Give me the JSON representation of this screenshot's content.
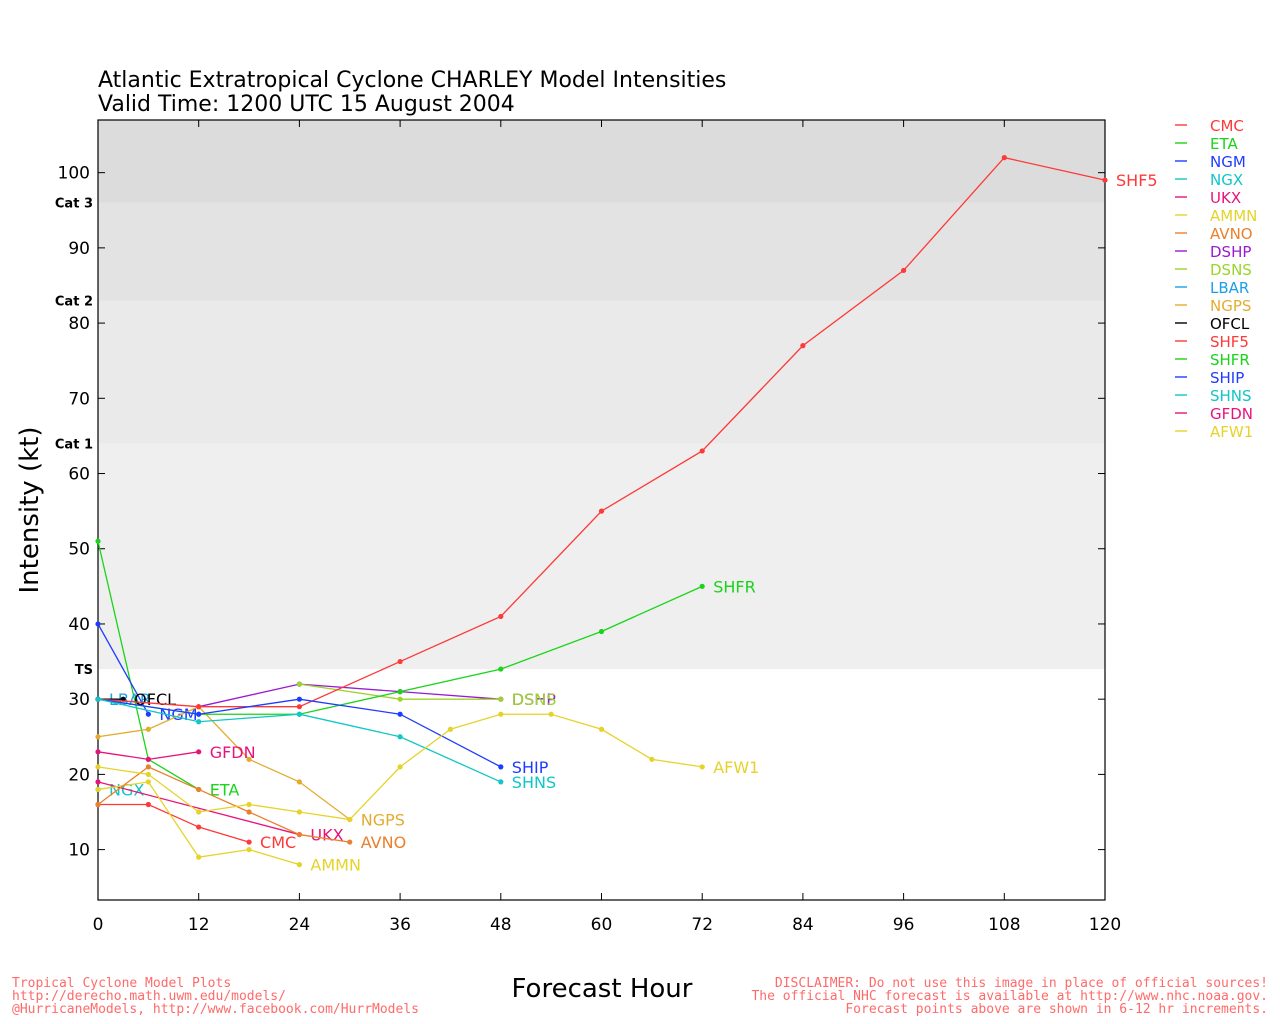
{
  "page": {
    "footer_left": [
      "Tropical Cyclone Model Plots",
      "http://derecho.math.uwm.edu/models/",
      "@HurricaneModels, http://www.facebook.com/HurrModels"
    ],
    "footer_right": [
      "DISCLAIMER: Do not use this image in place of official sources!",
      "The official NHC forecast is available at http://www.nhc.noaa.gov.",
      "Forecast points above are shown in 6-12 hr increments."
    ]
  },
  "chart_data": {
    "type": "line",
    "title": "Atlantic Extratropical Cyclone CHARLEY Model Intensities",
    "subtitle": "Valid Time: 1200 UTC 15 August 2004",
    "xlabel": "Forecast Hour",
    "ylabel": "Intensity (kt)",
    "xlim": [
      0,
      120
    ],
    "ylim": [
      3.3,
      107
    ],
    "x_ticks": [
      0,
      12,
      24,
      36,
      48,
      60,
      72,
      84,
      96,
      108,
      120
    ],
    "y_ticks": [
      10,
      20,
      30,
      40,
      50,
      60,
      70,
      80,
      90,
      100
    ],
    "grid": false,
    "legend_position": "right",
    "bands": [
      {
        "from": 3.3,
        "to": 34,
        "color": "#ffffff"
      },
      {
        "from": 34,
        "to": 64,
        "color": "#efefef"
      },
      {
        "from": 64,
        "to": 83,
        "color": "#eaeaea"
      },
      {
        "from": 83,
        "to": 96,
        "color": "#e3e3e3"
      },
      {
        "from": 96,
        "to": 107,
        "color": "#dcdcdc"
      }
    ],
    "category_labels": [
      {
        "label": "TS",
        "value": 34
      },
      {
        "label": "Cat 1",
        "value": 64
      },
      {
        "label": "Cat 2",
        "value": 83
      },
      {
        "label": "Cat 3",
        "value": 96
      }
    ],
    "series": [
      {
        "name": "CMC",
        "color": "#ff3838",
        "x": [
          0,
          6,
          12,
          18
        ],
        "y": [
          16,
          16,
          13,
          11
        ],
        "label": "CMC"
      },
      {
        "name": "ETA",
        "color": "#19d419",
        "x": [
          0,
          6,
          12
        ],
        "y": [
          51,
          22,
          18
        ],
        "label": "ETA"
      },
      {
        "name": "NGM",
        "color": "#1e3cff",
        "x": [
          0,
          6
        ],
        "y": [
          40,
          28
        ],
        "label": "NGM"
      },
      {
        "name": "NGX",
        "color": "#11c6c6",
        "x": [
          0
        ],
        "y": [
          18
        ],
        "label": "NGX"
      },
      {
        "name": "UKX",
        "color": "#e8137a",
        "x": [
          0,
          24
        ],
        "y": [
          19,
          12
        ],
        "label": "UKX"
      },
      {
        "name": "AMMN",
        "color": "#e6d32a",
        "x": [
          0,
          6,
          12,
          18,
          24
        ],
        "y": [
          18,
          19,
          9,
          10,
          8
        ],
        "label": "AMMN"
      },
      {
        "name": "AVNO",
        "color": "#ea7f2c",
        "x": [
          0,
          6,
          12,
          18,
          24,
          30
        ],
        "y": [
          16,
          21,
          18,
          15,
          12,
          11
        ],
        "label": "AVNO"
      },
      {
        "name": "DSHP",
        "color": "#9a1ad1",
        "x": [
          12,
          24,
          36,
          48
        ],
        "y": [
          29,
          32,
          31,
          30
        ],
        "label": "DSHP"
      },
      {
        "name": "DSNS",
        "color": "#9bd42a",
        "x": [
          24,
          36,
          48
        ],
        "y": [
          32,
          30,
          30
        ],
        "label": "DSNS"
      },
      {
        "name": "LBAR",
        "color": "#1ba0e6",
        "x": [
          0
        ],
        "y": [
          30
        ],
        "label": "LBAR"
      },
      {
        "name": "NGPS",
        "color": "#e3ac30",
        "x": [
          0,
          6,
          12,
          18,
          24,
          30
        ],
        "y": [
          25,
          26,
          29,
          22,
          19,
          14
        ],
        "label": "NGPS"
      },
      {
        "name": "OFCL",
        "color": "#000000",
        "x": [
          0,
          3
        ],
        "y": [
          30,
          30
        ],
        "label": "OFCL"
      },
      {
        "name": "SHF5",
        "color": "#ff3838",
        "x": [
          0,
          12,
          24,
          36,
          48,
          60,
          72,
          84,
          96,
          108,
          120
        ],
        "y": [
          30,
          29,
          29,
          35,
          41,
          55,
          63,
          77,
          87,
          102,
          99
        ],
        "label": "SHF5"
      },
      {
        "name": "SHFR",
        "color": "#19d419",
        "x": [
          0,
          12,
          24,
          36,
          48,
          60,
          72
        ],
        "y": [
          30,
          28,
          28,
          31,
          34,
          39,
          45
        ],
        "label": "SHFR"
      },
      {
        "name": "SHIP",
        "color": "#1e3cff",
        "x": [
          0,
          12,
          24,
          36,
          48
        ],
        "y": [
          30,
          28,
          30,
          28,
          21
        ],
        "label": "SHIP"
      },
      {
        "name": "SHNS",
        "color": "#11c6c6",
        "x": [
          0,
          12,
          24,
          36,
          48
        ],
        "y": [
          30,
          27,
          28,
          25,
          19
        ],
        "label": "SHNS"
      },
      {
        "name": "GFDN",
        "color": "#e8137a",
        "x": [
          0,
          6,
          12
        ],
        "y": [
          23,
          22,
          23
        ],
        "label": "GFDN"
      },
      {
        "name": "AFW1",
        "color": "#e6d32a",
        "x": [
          0,
          6,
          12,
          18,
          24,
          30,
          36,
          42,
          48,
          54,
          60,
          66,
          72
        ],
        "y": [
          21,
          20,
          15,
          16,
          15,
          14,
          21,
          26,
          28,
          28,
          26,
          22,
          21
        ],
        "label": "AFW1"
      }
    ]
  }
}
